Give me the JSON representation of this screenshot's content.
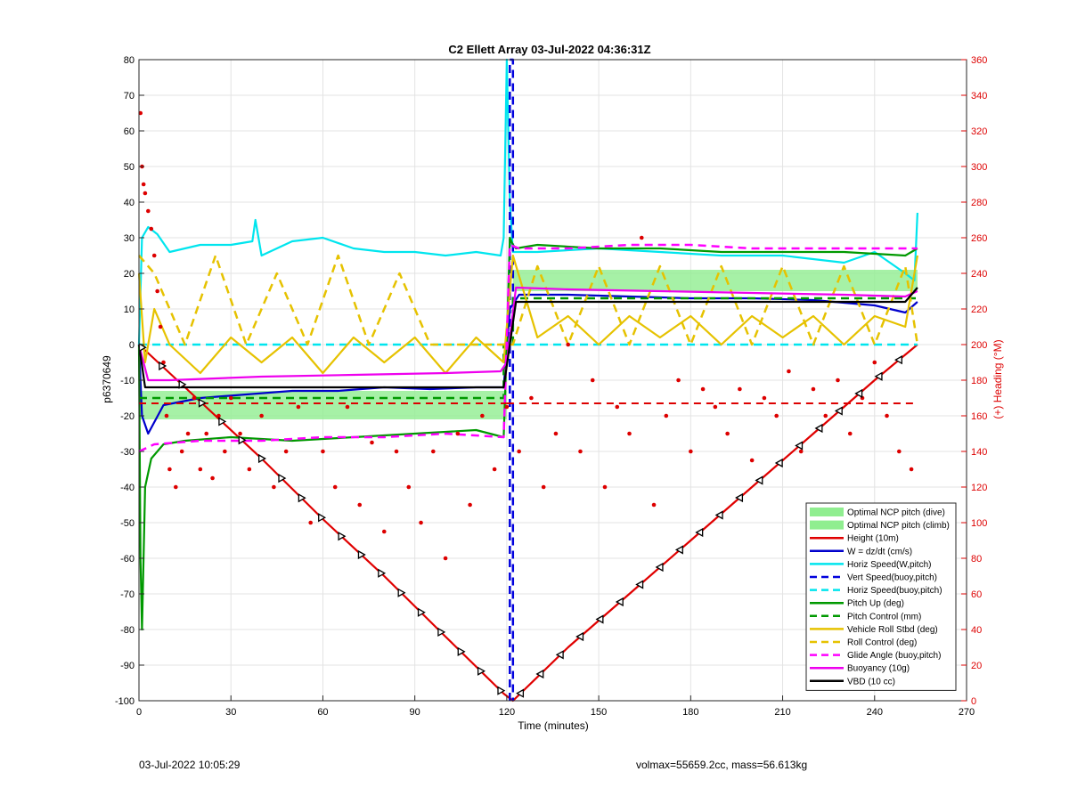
{
  "chart_data": {
    "type": "line",
    "title": "C2 Ellett Array 03-Jul-2022 04:36:31Z",
    "xlabel": "Time (minutes)",
    "ylabel": "p6370649",
    "y2label": "(+) Heading (°M)",
    "xlim": [
      0,
      270
    ],
    "ylim": [
      -100,
      80
    ],
    "y2lim": [
      0,
      360
    ],
    "x_ticks": [
      "0",
      "30",
      "60",
      "90",
      "120",
      "150",
      "180",
      "210",
      "240",
      "270"
    ],
    "y_ticks": [
      "80",
      "70",
      "60",
      "50",
      "40",
      "30",
      "20",
      "10",
      "0",
      "-10",
      "-20",
      "-30",
      "-40",
      "-50",
      "-60",
      "-70",
      "-80",
      "-90",
      "-100"
    ],
    "y2_ticks": [
      "360",
      "340",
      "320",
      "300",
      "280",
      "260",
      "240",
      "220",
      "200",
      "180",
      "160",
      "140",
      "120",
      "100",
      "80",
      "60",
      "40",
      "20",
      "0"
    ],
    "grid": true,
    "legend_position": "bottom-right",
    "bands": [
      {
        "name": "Optimal NCP pitch (dive)",
        "x": [
          0,
          120
        ],
        "y": [
          -21,
          -13
        ],
        "color": "#90ee90"
      },
      {
        "name": "Optimal NCP pitch (climb)",
        "x": [
          122,
          254
        ],
        "y": [
          15,
          21
        ],
        "color": "#90ee90"
      }
    ],
    "series": [
      {
        "name": "Height (10m)",
        "color": "#e00000",
        "style": "solid",
        "x": [
          0,
          20,
          40,
          60,
          80,
          100,
          119,
          122,
          140,
          160,
          180,
          200,
          220,
          240,
          254
        ],
        "y": [
          0,
          -16,
          -32,
          -49,
          -65,
          -82,
          -98,
          -100,
          -85,
          -70,
          -55,
          -40,
          -25,
          -10,
          0
        ]
      },
      {
        "name": "W = dz/dt (cm/s)",
        "color": "#0000cc",
        "style": "solid",
        "x": [
          0,
          1,
          3,
          8,
          20,
          35,
          50,
          65,
          80,
          95,
          110,
          119,
          121,
          124,
          140,
          160,
          180,
          200,
          220,
          240,
          250,
          254
        ],
        "y": [
          0,
          -20,
          -25,
          -17,
          -15,
          -14,
          -13,
          -13,
          -12,
          -12.5,
          -12,
          -12,
          10,
          14,
          14,
          13.5,
          13,
          13,
          12.5,
          11,
          9,
          12
        ]
      },
      {
        "name": "Horiz Speed(W,pitch)",
        "color": "#00e5ee",
        "style": "solid",
        "x": [
          0,
          1,
          3,
          6,
          10,
          20,
          30,
          37,
          38,
          40,
          50,
          60,
          70,
          80,
          90,
          100,
          110,
          118,
          119,
          120,
          121,
          122,
          130,
          150,
          170,
          190,
          210,
          230,
          240,
          250,
          253,
          254
        ],
        "y": [
          0,
          30,
          33,
          31,
          26,
          28,
          28,
          29,
          35,
          25,
          29,
          30,
          27,
          26,
          26,
          25,
          26,
          25,
          30,
          80,
          40,
          26,
          26,
          27,
          26,
          25,
          25,
          23,
          26,
          20,
          18,
          37
        ]
      },
      {
        "name": "Vert Speed(buoy,pitch)",
        "color": "#0000dd",
        "style": "dashed",
        "x": [
          121,
          121,
          122,
          122
        ],
        "y": [
          -100,
          80,
          80,
          -100
        ]
      },
      {
        "name": "Horiz Speed(buoy,pitch)",
        "color": "#00e5ee",
        "style": "dashed",
        "x": [
          0,
          120,
          122,
          254
        ],
        "y": [
          0,
          0,
          0,
          0
        ]
      },
      {
        "name": "Pitch Up (deg)",
        "color": "#009900",
        "style": "solid",
        "x": [
          0,
          0.5,
          1,
          2,
          4,
          8,
          15,
          30,
          50,
          70,
          90,
          110,
          119,
          120,
          121,
          122,
          123,
          130,
          150,
          170,
          190,
          210,
          230,
          250,
          254
        ],
        "y": [
          0,
          -60,
          -80,
          -40,
          -32,
          -28,
          -27,
          -26,
          -27,
          -26,
          -25,
          -24,
          -26,
          0,
          30,
          28,
          27,
          28,
          27,
          27,
          26,
          26,
          26,
          25,
          27
        ]
      },
      {
        "name": "Pitch Control (mm)",
        "color": "#009900",
        "style": "dashed",
        "x": [
          0,
          119,
          119,
          122,
          122,
          254
        ],
        "y": [
          -15,
          -15,
          0,
          0,
          13,
          13
        ]
      },
      {
        "name": "Vehicle Roll Stbd (deg)",
        "color": "#e6c200",
        "style": "solid",
        "x": [
          0,
          2,
          5,
          10,
          20,
          30,
          40,
          50,
          60,
          70,
          80,
          90,
          100,
          110,
          119,
          122,
          130,
          140,
          150,
          160,
          170,
          180,
          190,
          200,
          210,
          220,
          230,
          240,
          250,
          254
        ],
        "y": [
          20,
          -5,
          10,
          0,
          -8,
          2,
          -5,
          2,
          -8,
          2,
          -5,
          2,
          -8,
          2,
          -5,
          25,
          2,
          8,
          0,
          8,
          2,
          8,
          0,
          8,
          2,
          8,
          0,
          8,
          5,
          25
        ]
      },
      {
        "name": "Roll Control (deg)",
        "color": "#e6c200",
        "style": "dashed",
        "x": [
          0,
          5,
          15,
          25,
          35,
          45,
          55,
          65,
          75,
          85,
          95,
          105,
          115,
          119,
          122,
          130,
          140,
          150,
          160,
          170,
          180,
          190,
          200,
          210,
          220,
          230,
          240,
          250,
          254
        ],
        "y": [
          25,
          20,
          0,
          25,
          0,
          20,
          0,
          25,
          0,
          20,
          0,
          0,
          0,
          0,
          0,
          22,
          0,
          22,
          0,
          22,
          0,
          22,
          0,
          22,
          0,
          22,
          0,
          22,
          0
        ]
      },
      {
        "name": "Glide Angle (buoy,pitch)",
        "color": "#ff00ff",
        "style": "dashed",
        "x": [
          0,
          5,
          20,
          40,
          60,
          80,
          100,
          119,
          121,
          124,
          140,
          160,
          180,
          200,
          220,
          240,
          254
        ],
        "y": [
          -30,
          -28,
          -27,
          -27,
          -26,
          -26,
          -25,
          -26,
          28,
          27,
          27,
          28,
          28,
          27,
          27,
          27,
          27
        ]
      },
      {
        "name": "Buoyancy (10g)",
        "color": "#ee00ee",
        "style": "solid",
        "x": [
          0,
          3,
          10,
          40,
          70,
          100,
          118,
          120,
          123,
          140,
          170,
          200,
          230,
          250,
          254
        ],
        "y": [
          0,
          -10,
          -10,
          -9,
          -8.5,
          -8,
          -7.5,
          -5,
          16,
          15.5,
          15,
          14.5,
          14,
          13.5,
          15
        ]
      },
      {
        "name": "VBD (10 cc)",
        "color": "#000000",
        "style": "solid",
        "x": [
          0,
          2,
          10,
          40,
          70,
          100,
          119,
          123,
          140,
          170,
          200,
          230,
          250,
          253,
          254
        ],
        "y": [
          0,
          -12,
          -12,
          -12,
          -12,
          -12,
          -12,
          12,
          12,
          12,
          12,
          12,
          12,
          15,
          16
        ]
      }
    ],
    "heading": {
      "name": "(+) Heading (°M)",
      "color": "#dd0000",
      "target": 167,
      "x": [
        0.5,
        1,
        1.5,
        2,
        3,
        4,
        5,
        6,
        7,
        8,
        9,
        10,
        12,
        14,
        16,
        18,
        20,
        22,
        24,
        26,
        28,
        30,
        33,
        36,
        40,
        44,
        48,
        52,
        56,
        60,
        64,
        68,
        72,
        76,
        80,
        84,
        88,
        92,
        96,
        100,
        104,
        108,
        112,
        116,
        120,
        124,
        128,
        132,
        136,
        140,
        144,
        148,
        152,
        156,
        160,
        164,
        168,
        172,
        176,
        180,
        184,
        188,
        192,
        196,
        200,
        204,
        208,
        212,
        216,
        220,
        224,
        228,
        232,
        236,
        240,
        244,
        248,
        252
      ],
      "y": [
        330,
        300,
        290,
        285,
        275,
        265,
        250,
        230,
        210,
        190,
        160,
        130,
        120,
        140,
        150,
        170,
        130,
        150,
        125,
        160,
        140,
        170,
        150,
        130,
        160,
        120,
        140,
        165,
        100,
        140,
        120,
        165,
        110,
        145,
        95,
        140,
        120,
        100,
        140,
        80,
        150,
        110,
        160,
        130,
        165,
        140,
        170,
        120,
        150,
        200,
        140,
        180,
        120,
        165,
        150,
        260,
        110,
        160,
        180,
        140,
        175,
        165,
        150,
        175,
        135,
        170,
        160,
        185,
        140,
        175,
        160,
        180,
        150,
        170,
        190,
        160,
        140,
        130
      ]
    }
  },
  "legend": [
    {
      "label": "Optimal NCP pitch (dive)",
      "kind": "patch",
      "color": "#90ee90"
    },
    {
      "label": "Optimal NCP pitch (climb)",
      "kind": "patch",
      "color": "#90ee90"
    },
    {
      "label": "Height (10m)",
      "kind": "solid",
      "color": "#e00000"
    },
    {
      "label": "W = dz/dt (cm/s)",
      "kind": "solid",
      "color": "#0000cc"
    },
    {
      "label": "Horiz Speed(W,pitch)",
      "kind": "solid",
      "color": "#00e5ee"
    },
    {
      "label": "Vert Speed(buoy,pitch)",
      "kind": "dashed",
      "color": "#0000dd"
    },
    {
      "label": "Horiz Speed(buoy,pitch)",
      "kind": "dashed",
      "color": "#00e5ee"
    },
    {
      "label": "Pitch Up (deg)",
      "kind": "solid",
      "color": "#009900"
    },
    {
      "label": "Pitch Control (mm)",
      "kind": "dashed",
      "color": "#009900"
    },
    {
      "label": "Vehicle Roll Stbd (deg)",
      "kind": "solid",
      "color": "#e6c200"
    },
    {
      "label": "Roll Control (deg)",
      "kind": "dashed",
      "color": "#e6c200"
    },
    {
      "label": "Glide Angle (buoy,pitch)",
      "kind": "dashed",
      "color": "#ff00ff"
    },
    {
      "label": "Buoyancy (10g)",
      "kind": "solid",
      "color": "#ee00ee"
    },
    {
      "label": "VBD (10 cc)",
      "kind": "solid",
      "color": "#000000"
    }
  ],
  "footer": {
    "left": "03-Jul-2022 10:05:29",
    "right": "volmax=55659.2cc, mass=56.613kg"
  }
}
